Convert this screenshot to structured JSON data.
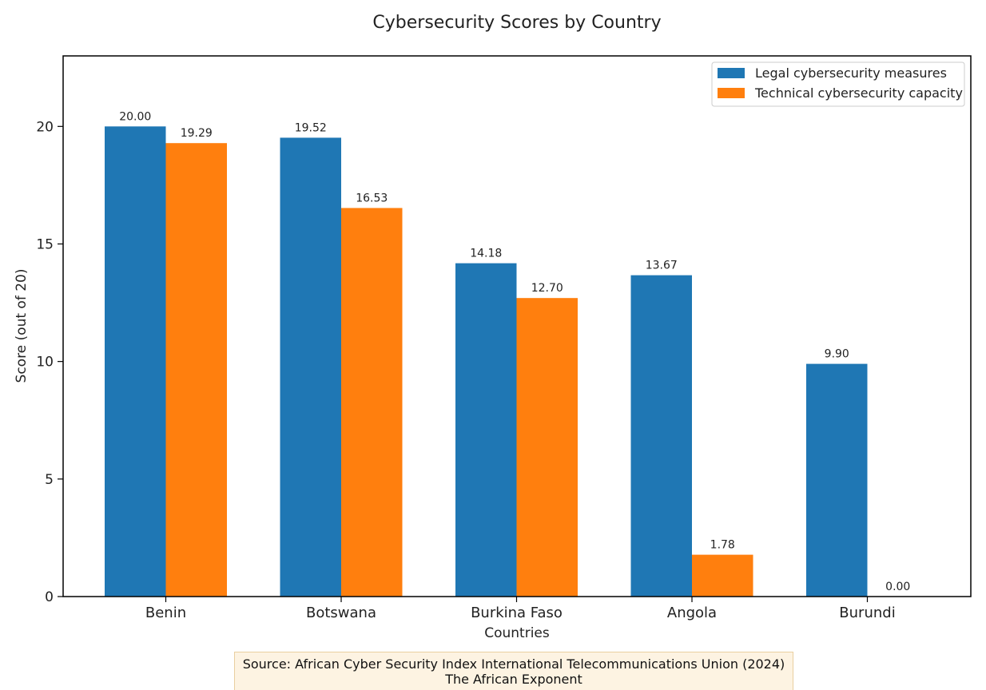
{
  "chart_data": {
    "type": "bar",
    "title": "Cybersecurity Scores by Country",
    "xlabel": "Countries",
    "ylabel": "Score (out of 20)",
    "categories": [
      "Benin",
      "Botswana",
      "Burkina Faso",
      "Angola",
      "Burundi"
    ],
    "series": [
      {
        "name": "Legal cybersecurity measures",
        "values": [
          20.0,
          19.52,
          14.18,
          13.67,
          9.9
        ],
        "color": "#1f77b4"
      },
      {
        "name": "Technical cybersecurity capacity",
        "values": [
          19.29,
          16.53,
          12.7,
          1.78,
          0.0
        ],
        "color": "#ff7f0e"
      }
    ],
    "data_labels": [
      [
        "20.00",
        "19.52",
        "14.18",
        "13.67",
        "9.90"
      ],
      [
        "19.29",
        "16.53",
        "12.70",
        "1.78",
        "0.00"
      ]
    ],
    "ylim": [
      0,
      23
    ],
    "yticks": [
      0,
      5,
      10,
      15,
      20
    ],
    "legend_position": "top-right",
    "grid": false
  },
  "source": {
    "line1": "Source: African Cyber Security Index International Telecommunications Union (2024)",
    "line2": "The African Exponent"
  }
}
